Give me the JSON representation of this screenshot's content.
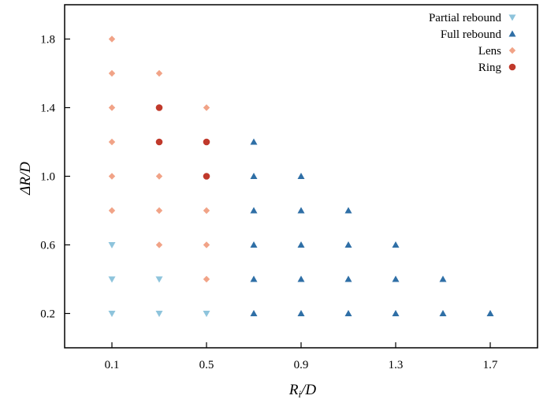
{
  "chart_data": {
    "type": "scatter",
    "xlabel": "R_i/D",
    "ylabel": "ΔR/D",
    "xlim": [
      -0.1,
      1.9
    ],
    "ylim": [
      0.0,
      2.0
    ],
    "xticks": [
      "0.1",
      "0.5",
      "0.9",
      "1.3",
      "1.7"
    ],
    "yticks": [
      "0.2",
      "0.6",
      "1.0",
      "1.4",
      "1.8"
    ],
    "legend_position": "top-right",
    "grid": false,
    "series": [
      {
        "name": "Partial rebound",
        "marker": "triangle-down",
        "color": "#8ec4dc",
        "points": [
          [
            0.1,
            0.2
          ],
          [
            0.1,
            0.4
          ],
          [
            0.1,
            0.6
          ],
          [
            0.3,
            0.2
          ],
          [
            0.3,
            0.4
          ],
          [
            0.5,
            0.2
          ]
        ]
      },
      {
        "name": "Full rebound",
        "marker": "triangle-up",
        "color": "#2f6fa6",
        "points": [
          [
            0.7,
            0.2
          ],
          [
            0.7,
            0.4
          ],
          [
            0.7,
            0.6
          ],
          [
            0.7,
            0.8
          ],
          [
            0.7,
            1.0
          ],
          [
            0.7,
            1.2
          ],
          [
            0.9,
            0.2
          ],
          [
            0.9,
            0.4
          ],
          [
            0.9,
            0.6
          ],
          [
            0.9,
            0.8
          ],
          [
            0.9,
            1.0
          ],
          [
            1.1,
            0.2
          ],
          [
            1.1,
            0.4
          ],
          [
            1.1,
            0.6
          ],
          [
            1.1,
            0.8
          ],
          [
            1.3,
            0.2
          ],
          [
            1.3,
            0.4
          ],
          [
            1.3,
            0.6
          ],
          [
            1.5,
            0.2
          ],
          [
            1.5,
            0.4
          ],
          [
            1.7,
            0.2
          ]
        ]
      },
      {
        "name": "Lens",
        "marker": "diamond",
        "color": "#f1a387",
        "points": [
          [
            0.1,
            0.8
          ],
          [
            0.1,
            1.0
          ],
          [
            0.1,
            1.2
          ],
          [
            0.1,
            1.4
          ],
          [
            0.1,
            1.6
          ],
          [
            0.1,
            1.8
          ],
          [
            0.3,
            0.6
          ],
          [
            0.3,
            0.8
          ],
          [
            0.3,
            1.0
          ],
          [
            0.3,
            1.6
          ],
          [
            0.5,
            0.4
          ],
          [
            0.5,
            0.6
          ],
          [
            0.5,
            0.8
          ],
          [
            0.5,
            1.4
          ]
        ]
      },
      {
        "name": "Ring",
        "marker": "circle",
        "color": "#c0392b",
        "points": [
          [
            0.3,
            1.2
          ],
          [
            0.3,
            1.4
          ],
          [
            0.5,
            1.0
          ],
          [
            0.5,
            1.2
          ]
        ]
      }
    ]
  }
}
